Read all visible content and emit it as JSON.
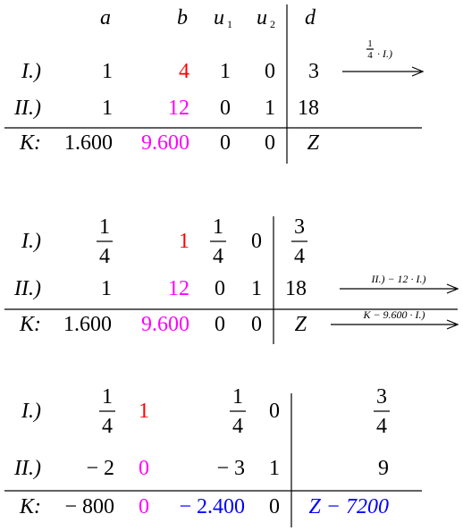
{
  "tableaux": [
    {
      "header": [
        {
          "text": "a"
        },
        {
          "text": "b"
        },
        {
          "text": "u",
          "sub": "1"
        },
        {
          "text": "u",
          "sub": "2"
        },
        {
          "text": "d"
        }
      ],
      "rows": [
        {
          "label": "I.)",
          "cells": [
            "1",
            {
              "text": "4",
              "color": "#ff0000"
            },
            "1",
            "0",
            "3"
          ],
          "arrow": {
            "num": "1",
            "den": "4",
            "text": "· I.)"
          }
        },
        {
          "label": "II.)",
          "cells": [
            "1",
            {
              "text": "12",
              "color": "#ff00ff"
            },
            "0",
            "1",
            "18"
          ]
        },
        {
          "label": "K:",
          "cells": [
            "1.600",
            {
              "text": "9.600",
              "color": "#ff00ff"
            },
            "0",
            "0",
            "Z"
          ]
        }
      ]
    },
    {
      "rows": [
        {
          "label": "I.)",
          "cells": [
            {
              "num": "1",
              "den": "4"
            },
            {
              "text": "1",
              "color": "#ff0000"
            },
            {
              "num": "1",
              "den": "4"
            },
            "0",
            {
              "num": "3",
              "den": "4"
            }
          ]
        },
        {
          "label": "II.)",
          "cells": [
            "1",
            {
              "text": "12",
              "color": "#ff00ff"
            },
            "0",
            "1",
            "18"
          ],
          "arrow": {
            "text": "II.) − 12 · I.)"
          }
        },
        {
          "label": "K:",
          "cells": [
            "1.600",
            {
              "text": "9.600",
              "color": "#ff00ff"
            },
            "0",
            "0",
            "Z"
          ],
          "arrow": {
            "text": "K − 9.600 · I.)"
          }
        }
      ]
    },
    {
      "rows": [
        {
          "label": "I.)",
          "cells": [
            {
              "num": "1",
              "den": "4"
            },
            {
              "text": "1",
              "color": "#ff0000"
            },
            {
              "num": "1",
              "den": "4"
            },
            "0",
            {
              "num": "3",
              "den": "4"
            }
          ]
        },
        {
          "label": "II.)",
          "cells": [
            "− 2",
            {
              "text": "0",
              "color": "#ff00ff"
            },
            "− 3",
            "1",
            "9"
          ]
        },
        {
          "label": "K:",
          "cells": [
            "− 800",
            {
              "text": "0",
              "color": "#ff00ff"
            },
            {
              "text": "− 2.400",
              "color": "#0000ff"
            },
            "0",
            {
              "text": "Z − 7200",
              "color": "#0000ff"
            }
          ]
        }
      ]
    }
  ]
}
